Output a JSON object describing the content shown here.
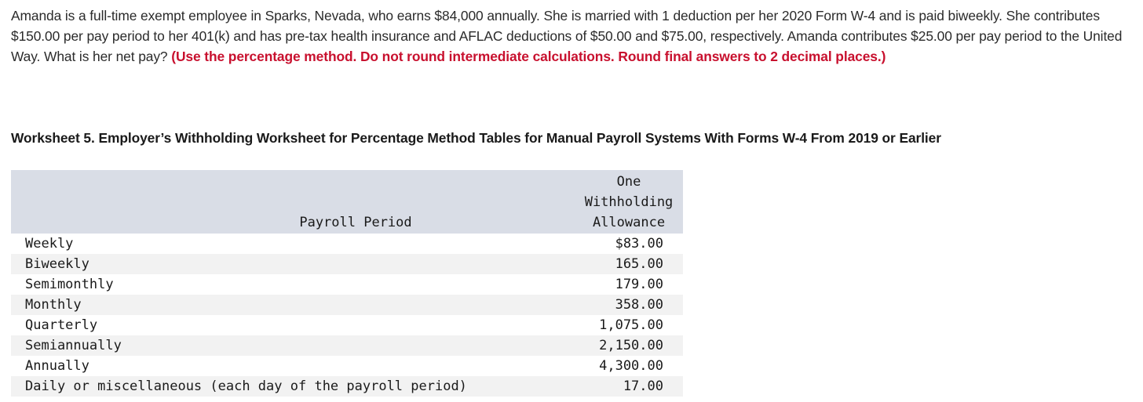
{
  "question": {
    "text": "Amanda is a full-time exempt employee in Sparks, Nevada, who earns $84,000 annually. She is married with 1 deduction per her 2020 Form W-4 and is paid biweekly. She contributes $150.00 per pay period to her 401(k) and has pre-tax health insurance and AFLAC deductions of $50.00 and $75.00, respectively. Amanda contributes $25.00 per pay period to the United Way. What is her net pay?",
    "instructions": "(Use the percentage method. Do not round intermediate calculations. Round final answers to 2 decimal places.)"
  },
  "worksheet": {
    "title": "Worksheet 5. Employer’s Withholding Worksheet for Percentage Method Tables for Manual Payroll Systems With Forms W-4 From 2019 or Earlier",
    "headers": {
      "period": "Payroll Period",
      "allowance_line1": "One",
      "allowance_line2": "Withholding",
      "allowance_line3": "Allowance"
    },
    "rows": [
      {
        "period": "Weekly",
        "amount": "$83.00"
      },
      {
        "period": "Biweekly",
        "amount": "165.00"
      },
      {
        "period": "Semimonthly",
        "amount": "179.00"
      },
      {
        "period": "Monthly",
        "amount": "358.00"
      },
      {
        "period": "Quarterly",
        "amount": "1,075.00"
      },
      {
        "period": "Semiannually",
        "amount": "2,150.00"
      },
      {
        "period": "Annually",
        "amount": "4,300.00"
      },
      {
        "period": "Daily or miscellaneous (each day of the payroll period)",
        "amount": "17.00"
      }
    ]
  }
}
